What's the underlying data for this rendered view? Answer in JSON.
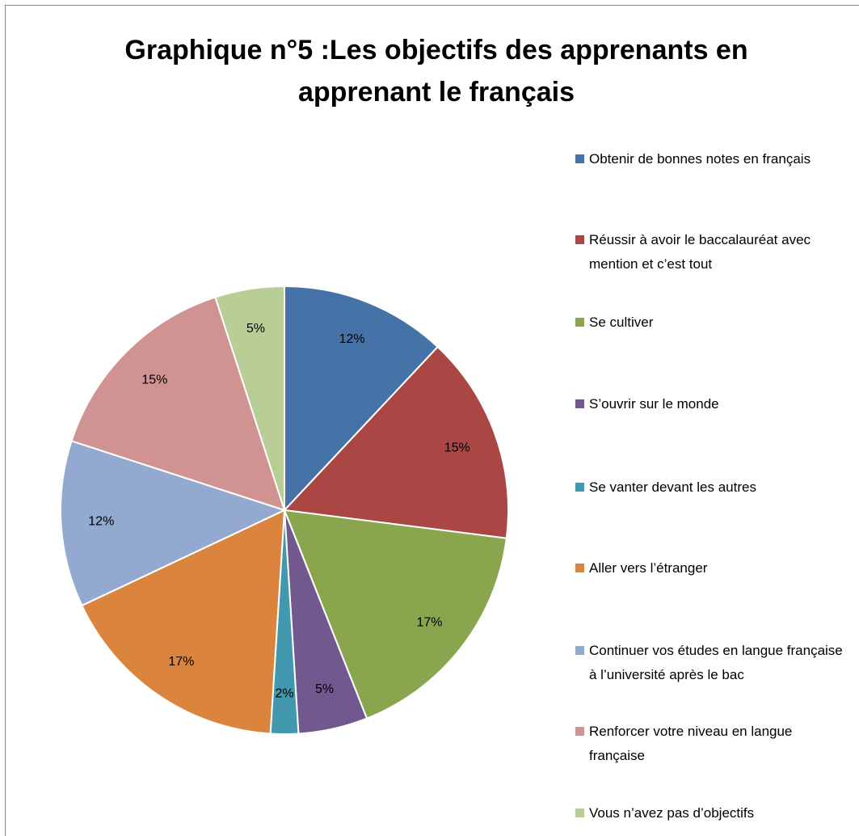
{
  "chart_data": {
    "type": "pie",
    "title": "Graphique n°5 :Les objectifs des apprenants en apprenant le français",
    "categories": [
      "Obtenir de bonnes  notes  en français",
      "Réussir à avoir le baccalauréat avec mention et c’est tout",
      "Se cultiver",
      "S’ouvrir sur le monde",
      "Se vanter devant  les autres",
      "Aller vers  l’étranger",
      "Continuer vos études en langue française à l’université  après le bac",
      "Renforcer votre niveau en langue française",
      "Vous n’avez pas d’objectifs"
    ],
    "values": [
      12,
      15,
      17,
      5,
      2,
      17,
      12,
      15,
      5
    ],
    "value_labels": [
      "12%",
      "15%",
      "17%",
      "5%",
      "2%",
      "17%",
      "12%",
      "15%",
      "5%"
    ],
    "colors": [
      "#4572A7",
      "#AA4643",
      "#89A54E",
      "#71588F",
      "#4198AF",
      "#DB843D",
      "#93A9CF",
      "#D19392",
      "#B9CD96"
    ],
    "legend": "right"
  }
}
